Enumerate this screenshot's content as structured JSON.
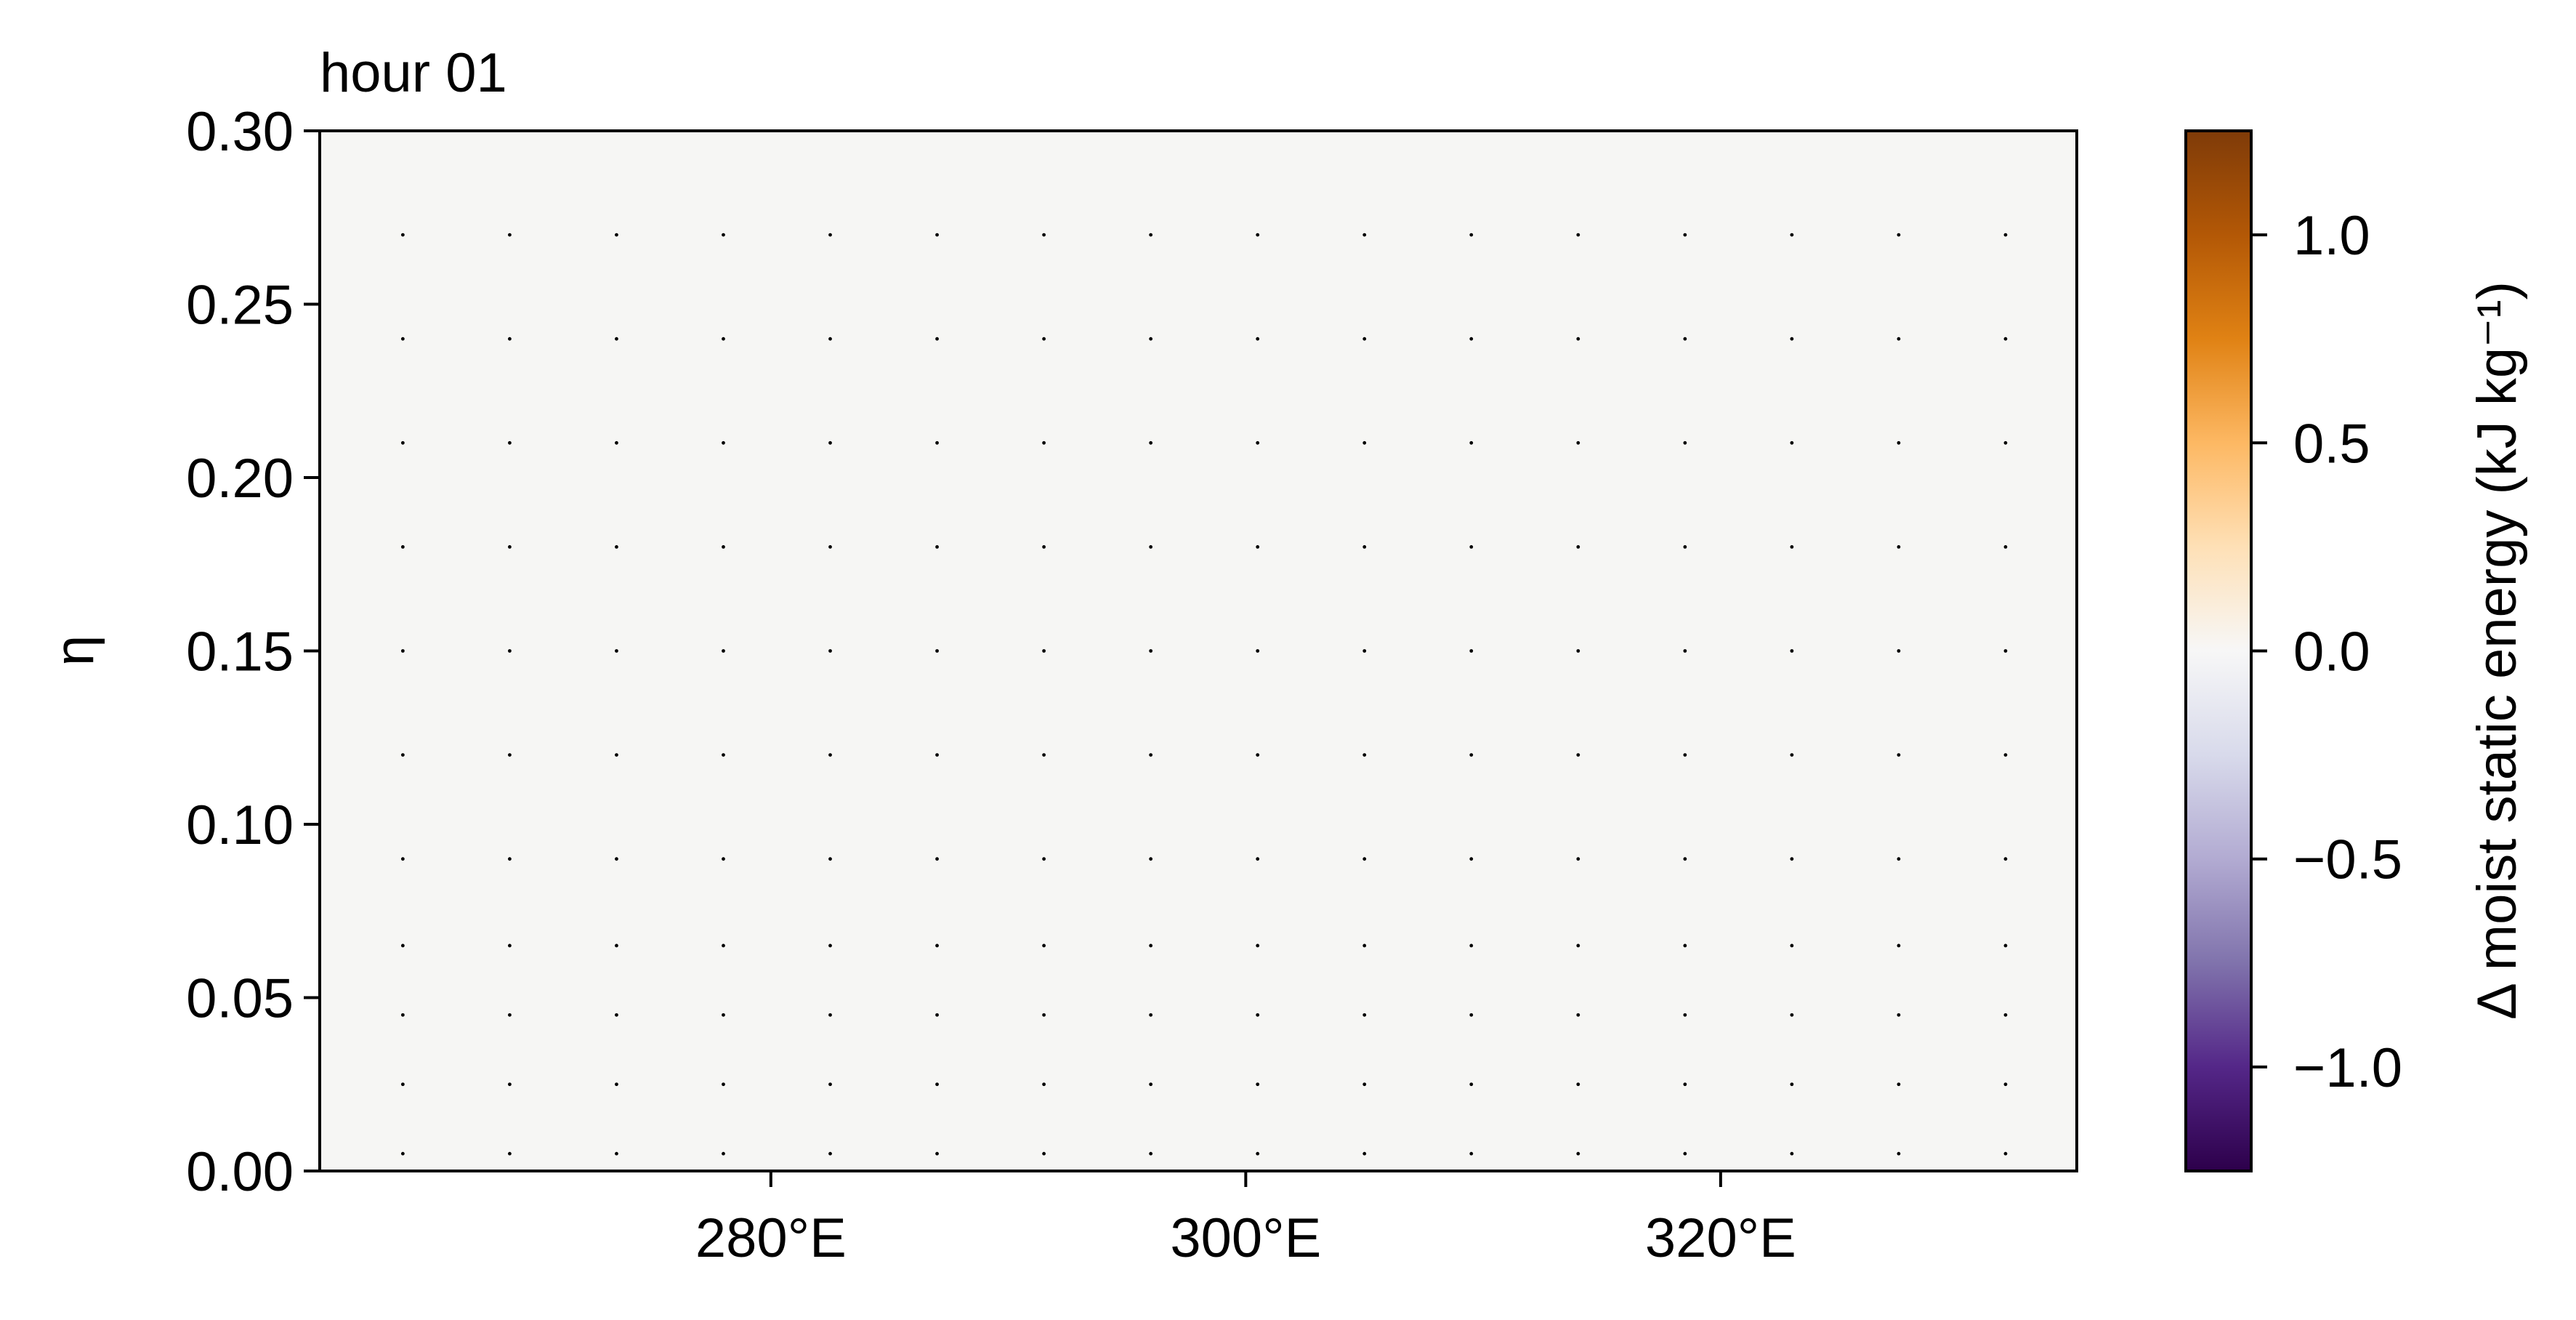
{
  "chart_data": {
    "type": "heatmap",
    "title": "hour 01",
    "xlabel": "",
    "ylabel": "η",
    "xlim": [
      261,
      335
    ],
    "ylim": [
      0,
      0.3
    ],
    "x_ticks": [
      280,
      300,
      320
    ],
    "x_tick_labels": [
      "280°E",
      "300°E",
      "320°E"
    ],
    "y_ticks": [
      0,
      0.05,
      0.1,
      0.15,
      0.2,
      0.25,
      0.3
    ],
    "y_tick_labels": [
      "0.00",
      "0.05",
      "0.10",
      "0.15",
      "0.20",
      "0.25",
      "0.30"
    ],
    "field_value": 0.0,
    "field_color": "#f6f6f4",
    "grid": false,
    "marker_points": {
      "x": [
        264.5,
        269,
        273.5,
        278,
        282.5,
        287,
        291.5,
        296,
        300.5,
        305,
        309.5,
        314,
        318.5,
        323,
        327.5,
        332
      ],
      "y": [
        0.005,
        0.025,
        0.045,
        0.065,
        0.09,
        0.12,
        0.15,
        0.18,
        0.21,
        0.24,
        0.27
      ],
      "color": "#000000"
    },
    "colorbar": {
      "label": "Δ moist static energy (kJ kg⁻¹)",
      "range": [
        -1.25,
        1.25
      ],
      "ticks": [
        -1.0,
        -0.5,
        0.0,
        0.5,
        1.0
      ],
      "tick_labels": [
        "−1.0",
        "−0.5",
        "0.0",
        "0.5",
        "1.0"
      ],
      "colormap": "PuOr_r",
      "colors": [
        "#2d004b",
        "#542788",
        "#8073ac",
        "#b2abd2",
        "#d8daeb",
        "#f7f7f7",
        "#fee0b6",
        "#fdb863",
        "#e08214",
        "#b35806",
        "#7f3b08"
      ]
    }
  }
}
